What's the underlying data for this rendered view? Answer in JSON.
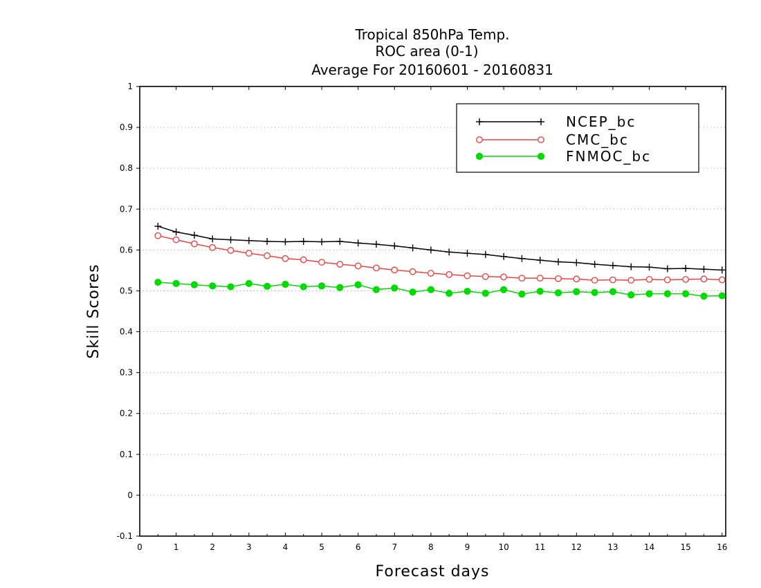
{
  "chart_data": {
    "type": "line",
    "title": [
      "Tropical 850hPa Temp.",
      "ROC area (0-1)",
      "Average For 20160601 - 20160831"
    ],
    "xlabel": "Forecast days",
    "ylabel": "Skill Scores",
    "xlim": [
      0,
      16.1
    ],
    "ylim": [
      -0.1,
      1
    ],
    "xticks": [
      0,
      1,
      2,
      3,
      4,
      5,
      6,
      7,
      8,
      9,
      10,
      11,
      12,
      13,
      14,
      15,
      16
    ],
    "yticks": [
      -0.1,
      0,
      0.1,
      0.2,
      0.3,
      0.4,
      0.5,
      0.6,
      0.7,
      0.8,
      0.9,
      1
    ],
    "ytick_labels": [
      "-0.1",
      "0",
      "0.1",
      "0.2",
      "0.3",
      "0.4",
      "0.5",
      "0.6",
      "0.7",
      "0.8",
      "0.9",
      "1"
    ],
    "grid": true,
    "legend_position": "top-right",
    "x": [
      0.5,
      1,
      1.5,
      2,
      2.5,
      3,
      3.5,
      4,
      4.5,
      5,
      5.5,
      6,
      6.5,
      7,
      7.5,
      8,
      8.5,
      9,
      9.5,
      10,
      10.5,
      11,
      11.5,
      12,
      12.5,
      13,
      13.5,
      14,
      14.5,
      15,
      15.5,
      16
    ],
    "series": [
      {
        "name": "NCEP_bc",
        "color": "#000000",
        "marker": "plus",
        "values": [
          0.658,
          0.644,
          0.636,
          0.627,
          0.625,
          0.623,
          0.621,
          0.62,
          0.621,
          0.62,
          0.621,
          0.617,
          0.614,
          0.61,
          0.605,
          0.6,
          0.595,
          0.592,
          0.589,
          0.584,
          0.579,
          0.575,
          0.571,
          0.569,
          0.565,
          0.562,
          0.559,
          0.558,
          0.554,
          0.555,
          0.553,
          0.551
        ]
      },
      {
        "name": "CMC_bc",
        "color": "#f04040",
        "marker": "open-circle",
        "values": [
          0.635,
          0.625,
          0.615,
          0.606,
          0.599,
          0.592,
          0.586,
          0.579,
          0.576,
          0.57,
          0.565,
          0.561,
          0.556,
          0.551,
          0.547,
          0.543,
          0.54,
          0.537,
          0.535,
          0.534,
          0.531,
          0.531,
          0.53,
          0.529,
          0.526,
          0.527,
          0.526,
          0.528,
          0.527,
          0.528,
          0.529,
          0.527
        ]
      },
      {
        "name": "FNMOC_bc",
        "color": "#00dc00",
        "marker": "filled-circle",
        "values": [
          0.521,
          0.518,
          0.515,
          0.512,
          0.51,
          0.518,
          0.511,
          0.516,
          0.51,
          0.512,
          0.508,
          0.515,
          0.503,
          0.507,
          0.497,
          0.503,
          0.494,
          0.499,
          0.494,
          0.503,
          0.492,
          0.499,
          0.495,
          0.498,
          0.496,
          0.498,
          0.49,
          0.493,
          0.493,
          0.493,
          0.487,
          0.488
        ]
      }
    ]
  }
}
